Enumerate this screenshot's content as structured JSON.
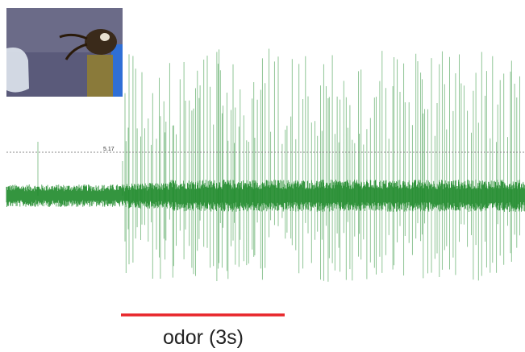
{
  "threshold_label": "5.17",
  "stimulus_label": "odor (3s)"
}
